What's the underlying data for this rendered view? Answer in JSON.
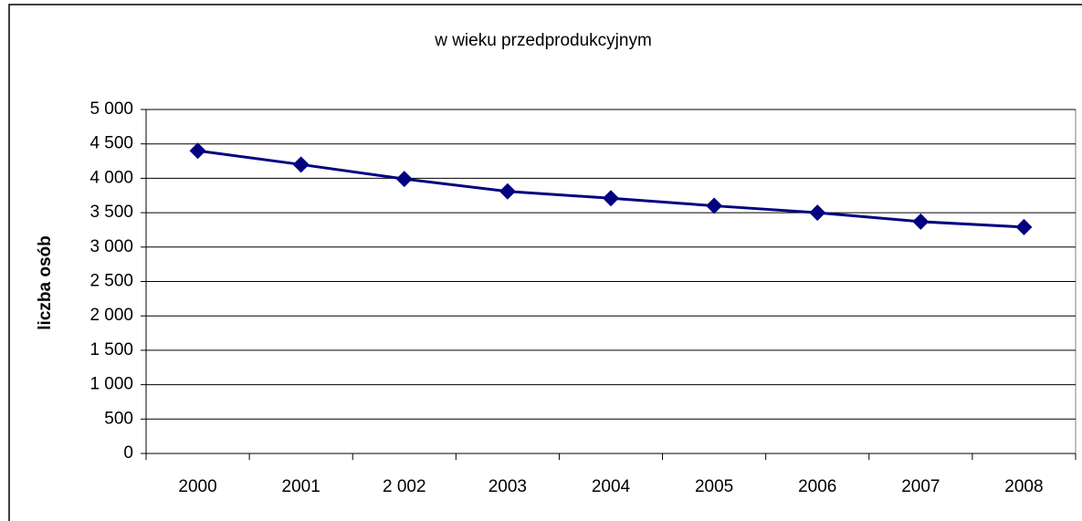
{
  "chart_data": {
    "type": "line",
    "title": "w wieku przedprodukcyjnym",
    "y_label": "liczba osób",
    "categories": [
      "2000",
      "2001",
      "2 002",
      "2003",
      "2004",
      "2005",
      "2006",
      "2007",
      "2008"
    ],
    "series": [
      {
        "name": "w wieku przedprodukcyjnym",
        "color": "#000080",
        "values": [
          4400,
          4200,
          3990,
          3810,
          3710,
          3600,
          3500,
          3370,
          3290
        ]
      }
    ],
    "ylim": [
      0,
      5000
    ],
    "yticks": [
      0,
      500,
      {
        "value": 1000,
        "label": "1 000"
      },
      {
        "value": 1500,
        "label": "1 500"
      },
      {
        "value": 2000,
        "label": "2 000"
      },
      {
        "value": 2500,
        "label": "2 500"
      },
      {
        "value": 3000,
        "label": "3 000"
      },
      {
        "value": 3500,
        "label": "3 500"
      },
      {
        "value": 4000,
        "label": "4 000"
      },
      {
        "value": 4500,
        "label": "4 500"
      },
      {
        "value": 5000,
        "label": "5 000"
      }
    ],
    "grid": true,
    "legend": false
  }
}
